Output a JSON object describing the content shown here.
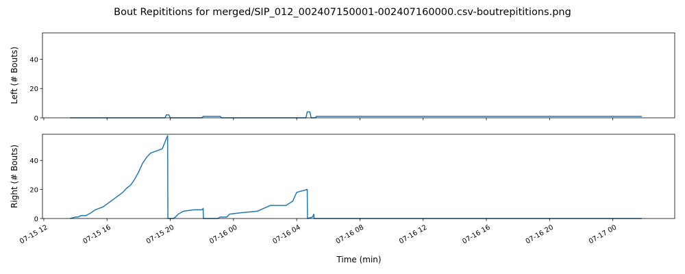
{
  "figure": {
    "title": "Bout Repititions for merged/SIP_012_002407150001-002407160000.csv-boutrepititions.png",
    "xlabel": "Time (min)"
  },
  "colors": {
    "line": "#1f77b4",
    "axes": "#000000",
    "background": "#ffffff"
  },
  "chart_data": [
    {
      "type": "line",
      "ylabel": "Left (# Bouts)",
      "xlim": [
        "2024-07-15 11:55",
        "2024-07-17 03:55"
      ],
      "ylim": [
        0,
        58
      ],
      "yticks": [
        0,
        20,
        40
      ],
      "x_tick_labels_visible": false,
      "shared_x_axis": true,
      "grid": false,
      "series": [
        {
          "x": [
            "2024-07-15 13:40",
            "2024-07-15 19:40",
            "2024-07-15 19:45",
            "2024-07-15 19:55",
            "2024-07-15 20:00",
            "2024-07-15 22:00",
            "2024-07-15 22:05",
            "2024-07-15 23:10",
            "2024-07-15 23:15",
            "2024-07-16 04:35",
            "2024-07-16 04:40",
            "2024-07-16 04:50",
            "2024-07-16 04:55",
            "2024-07-16 05:10",
            "2024-07-16 05:15",
            "2024-07-17 01:50"
          ],
          "y": [
            0,
            0,
            2,
            2,
            0,
            0,
            1,
            1,
            0,
            0,
            4,
            4,
            0,
            0,
            1,
            1
          ]
        }
      ]
    },
    {
      "type": "line",
      "ylabel": "Right (# Bouts)",
      "xlim": [
        "2024-07-15 11:55",
        "2024-07-17 03:55"
      ],
      "ylim": [
        0,
        58
      ],
      "yticks": [
        0,
        20,
        40
      ],
      "xticks": [
        "2024-07-15 12:00",
        "2024-07-15 16:00",
        "2024-07-15 20:00",
        "2024-07-16 00:00",
        "2024-07-16 04:00",
        "2024-07-16 08:00",
        "2024-07-16 12:00",
        "2024-07-16 16:00",
        "2024-07-16 20:00",
        "2024-07-17 00:00"
      ],
      "xtick_labels": [
        "07-15 12",
        "07-15 16",
        "07-15 20",
        "07-16 00",
        "07-16 04",
        "07-16 08",
        "07-16 12",
        "07-16 16",
        "07-16 20",
        "07-17 00"
      ],
      "grid": false,
      "series": [
        {
          "x": [
            "2024-07-15 13:40",
            "2024-07-15 14:00",
            "2024-07-15 14:10",
            "2024-07-15 14:20",
            "2024-07-15 14:40",
            "2024-07-15 14:50",
            "2024-07-15 15:00",
            "2024-07-15 15:15",
            "2024-07-15 15:30",
            "2024-07-15 15:45",
            "2024-07-15 16:00",
            "2024-07-15 16:15",
            "2024-07-15 16:30",
            "2024-07-15 16:45",
            "2024-07-15 17:00",
            "2024-07-15 17:15",
            "2024-07-15 17:30",
            "2024-07-15 17:45",
            "2024-07-15 18:00",
            "2024-07-15 18:15",
            "2024-07-15 18:30",
            "2024-07-15 18:45",
            "2024-07-15 19:00",
            "2024-07-15 19:15",
            "2024-07-15 19:30",
            "2024-07-15 19:45",
            "2024-07-15 19:50",
            "2024-07-15 19:51",
            "2024-07-15 20:10",
            "2024-07-15 20:20",
            "2024-07-15 20:30",
            "2024-07-15 20:50",
            "2024-07-15 21:30",
            "2024-07-15 22:00",
            "2024-07-15 22:05",
            "2024-07-15 22:06",
            "2024-07-15 23:00",
            "2024-07-15 23:10",
            "2024-07-15 23:35",
            "2024-07-15 23:45",
            "2024-07-16 00:30",
            "2024-07-16 01:30",
            "2024-07-16 02:20",
            "2024-07-16 03:00",
            "2024-07-16 03:20",
            "2024-07-16 03:45",
            "2024-07-16 04:00",
            "2024-07-16 04:20",
            "2024-07-16 04:40",
            "2024-07-16 04:41",
            "2024-07-16 05:00",
            "2024-07-16 05:05",
            "2024-07-16 05:06",
            "2024-07-17 01:50"
          ],
          "y": [
            0,
            1,
            1,
            2,
            2,
            3,
            4,
            6,
            7,
            8,
            10,
            12,
            14,
            16,
            18,
            21,
            23,
            27,
            32,
            38,
            42,
            45,
            46,
            47,
            48,
            55,
            57,
            0,
            0,
            1,
            3,
            5,
            6,
            6,
            7,
            0,
            0,
            1,
            1,
            3,
            4,
            5,
            9,
            9,
            9,
            12,
            18,
            19,
            20,
            0,
            1,
            3,
            0,
            0
          ]
        }
      ]
    }
  ]
}
